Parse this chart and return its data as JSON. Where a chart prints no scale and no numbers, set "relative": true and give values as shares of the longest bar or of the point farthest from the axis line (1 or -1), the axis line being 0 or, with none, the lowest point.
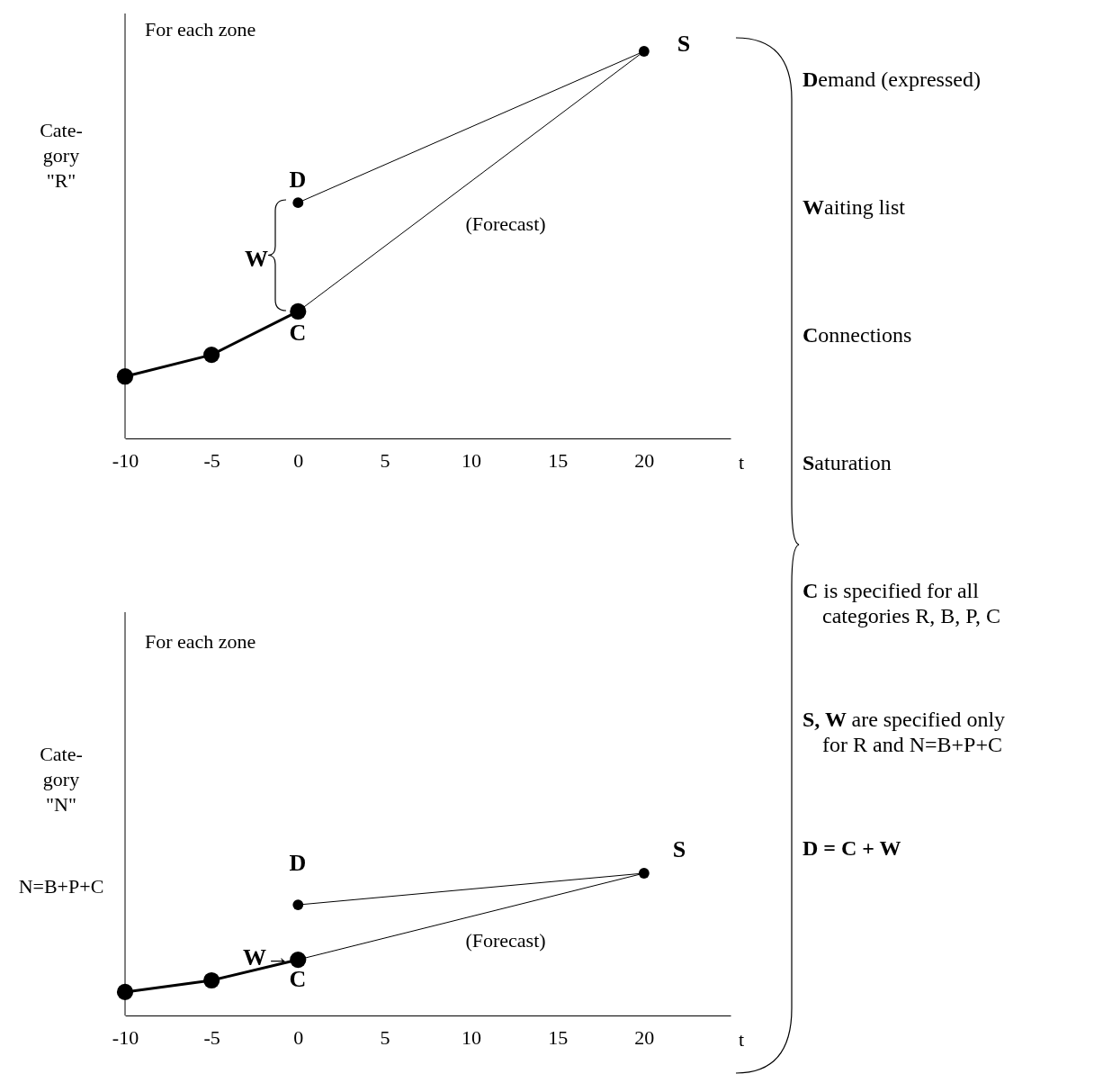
{
  "chart_data": [
    {
      "type": "line",
      "relative": true,
      "xlabel": "t",
      "ylabel": "Cate-\ngory\n\"R\"",
      "xlim": [
        -10,
        25
      ],
      "xticks": [
        -10,
        -5,
        0,
        5,
        10,
        15,
        20
      ],
      "marker": "circle",
      "grid": false,
      "series": [
        {
          "color": "#000000",
          "x": [
            -10,
            -5,
            0
          ],
          "values": [
            0.16,
            0.216,
            0.328
          ]
        },
        {
          "color": "#000000",
          "x": [
            0,
            20
          ],
          "values": [
            0.328,
            1
          ]
        },
        {
          "color": "#000000",
          "x": [
            0,
            20
          ],
          "values": [
            0.609,
            1
          ]
        }
      ],
      "annotations": [
        "For each zone",
        "(Forecast)",
        "D",
        "C",
        "S",
        "W"
      ]
    },
    {
      "type": "line",
      "relative": true,
      "xlabel": "t",
      "ylabel": "Cate-\ngory\n\"N\"",
      "xlim": [
        -10,
        25
      ],
      "xticks": [
        -10,
        -5,
        0,
        5,
        10,
        15,
        20
      ],
      "marker": "circle",
      "grid": false,
      "series": [
        {
          "color": "#000000",
          "x": [
            -10,
            -5,
            0
          ],
          "values": [
            0.165,
            0.247,
            0.392
          ]
        },
        {
          "color": "#000000",
          "x": [
            0,
            20
          ],
          "values": [
            0.392,
            1
          ]
        },
        {
          "color": "#000000",
          "x": [
            0,
            20
          ],
          "values": [
            0.778,
            1
          ]
        }
      ],
      "annotations": [
        "For each zone",
        "(Forecast)",
        "D",
        "C",
        "S",
        "W→",
        "N=B+P+C"
      ]
    },
    {
      "type": "other",
      "annotations": [
        "Demand (expressed)",
        "Waiting list",
        "Connections",
        "Saturation",
        "C is specified for all\ncategories R, B, P, C",
        "S, W are specified only\nfor R and N=B+P+C",
        "D = C + W"
      ]
    }
  ]
}
